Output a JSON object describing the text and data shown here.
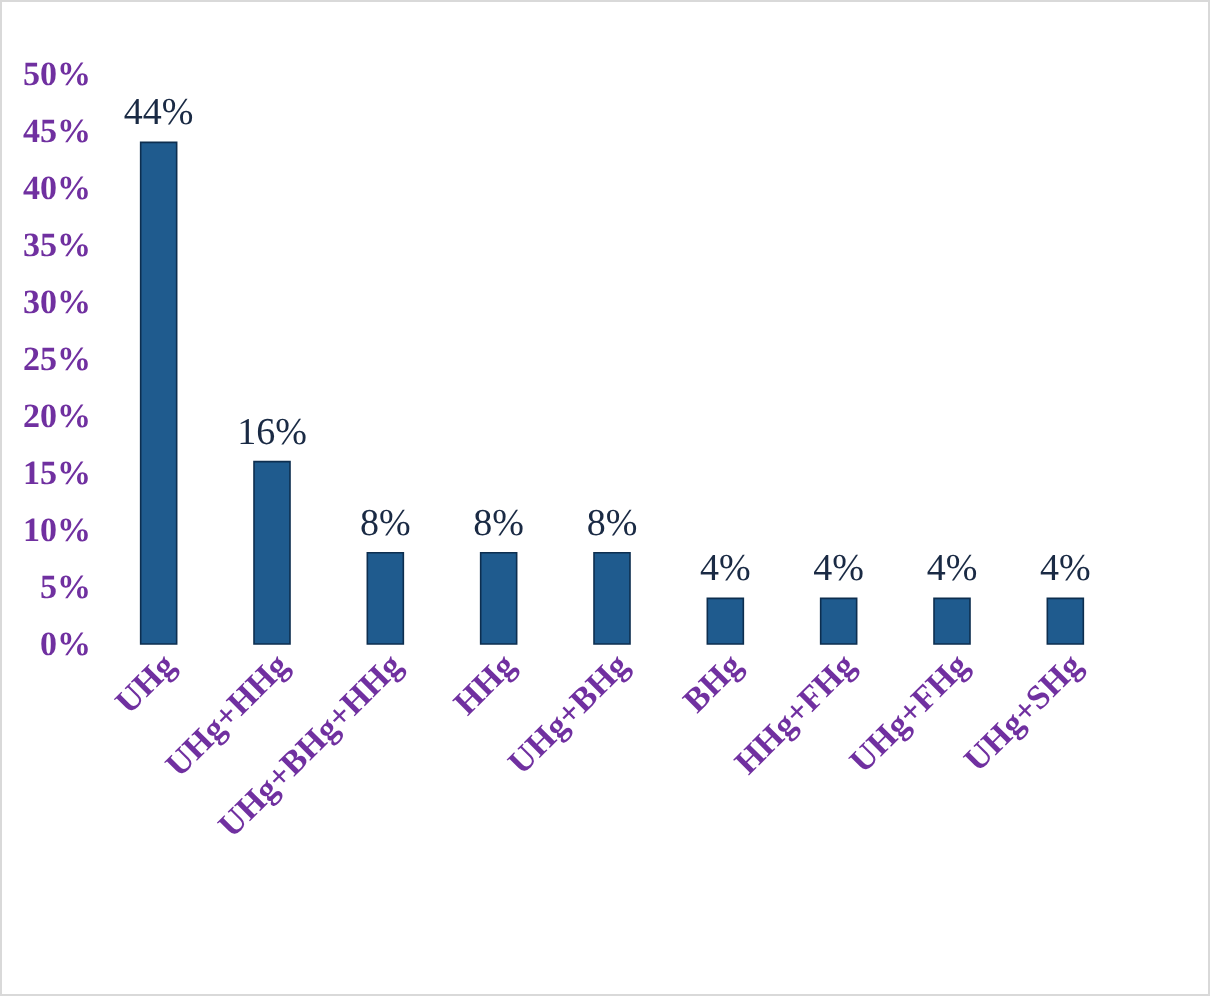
{
  "chart_data": {
    "type": "bar",
    "categories": [
      "UHg",
      "UHg+HHg",
      "UHg+BHg+HHg",
      "HHg",
      "UHg+BHg",
      "BHg",
      "HHg+FHg",
      "UHg+FHg",
      "UHg+SHg"
    ],
    "values": [
      44,
      16,
      8,
      8,
      8,
      4,
      4,
      4,
      4
    ],
    "value_labels": [
      "44%",
      "16%",
      "8%",
      "8%",
      "8%",
      "4%",
      "4%",
      "4%",
      "4%"
    ],
    "color": "#1f5b8e",
    "ylim": [
      0,
      50
    ],
    "yticks": [
      {
        "value": 0,
        "label": "0%"
      },
      {
        "value": 5,
        "label": "5%"
      },
      {
        "value": 10,
        "label": "10%"
      },
      {
        "value": 15,
        "label": "15%"
      },
      {
        "value": 20,
        "label": "20%"
      },
      {
        "value": 25,
        "label": "25%"
      },
      {
        "value": 30,
        "label": "30%"
      },
      {
        "value": 35,
        "label": "35%"
      },
      {
        "value": 40,
        "label": "40%"
      },
      {
        "value": 45,
        "label": "45%"
      },
      {
        "value": 50,
        "label": "50%"
      }
    ],
    "grid": false
  }
}
